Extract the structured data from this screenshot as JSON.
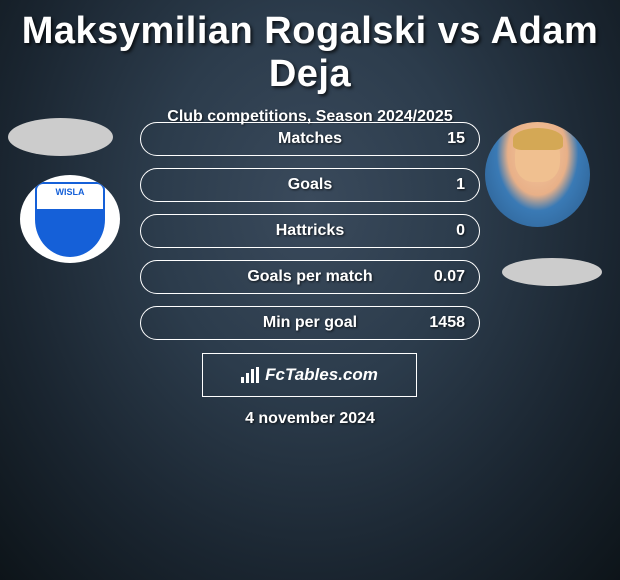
{
  "header": {
    "title": "Maksymilian Rogalski vs Adam Deja",
    "subtitle": "Club competitions, Season 2024/2025"
  },
  "left_player": {
    "avatar_placeholder_color": "#cccccc",
    "club_logo": {
      "name": "WISLA",
      "primary_color": "#1560d8",
      "background": "#ffffff"
    }
  },
  "right_player": {
    "avatar_skin": "#f0c090",
    "avatar_hair": "#d4a855",
    "avatar_shirt": "#2a5a8a",
    "club_placeholder_color": "#cccccc"
  },
  "stats": [
    {
      "label": "Matches",
      "value": "15"
    },
    {
      "label": "Goals",
      "value": "1"
    },
    {
      "label": "Hattricks",
      "value": "0"
    },
    {
      "label": "Goals per match",
      "value": "0.07"
    },
    {
      "label": "Min per goal",
      "value": "1458"
    }
  ],
  "brand": {
    "text": "FcTables.com"
  },
  "date": "4 november 2024",
  "colors": {
    "text": "#ffffff",
    "bg_center": "#3a4a5c",
    "bg_outer": "#0d1419",
    "border": "#ffffff"
  },
  "typography": {
    "title_fontsize": 38,
    "subtitle_fontsize": 16,
    "stat_fontsize": 16,
    "brand_fontsize": 17,
    "date_fontsize": 16
  }
}
